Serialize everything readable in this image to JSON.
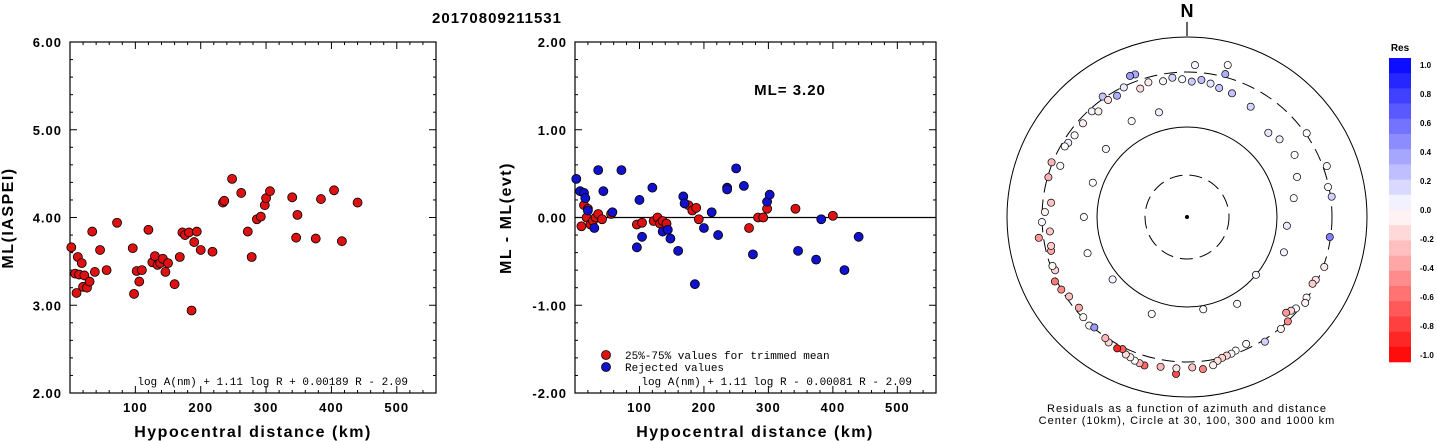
{
  "title": "20170809211531",
  "colors": {
    "red": "#dd1111",
    "blue": "#1111cc"
  },
  "chart_data": [
    {
      "type": "scatter",
      "xlabel": "Hypocentral distance (km)",
      "ylabel": "ML(IASPEI)",
      "xlim": [
        0,
        560
      ],
      "ylim": [
        2.0,
        6.0
      ],
      "xticks": [
        100,
        200,
        300,
        400,
        500
      ],
      "yticks": [
        "2.00",
        "3.00",
        "4.00",
        "5.00",
        "6.00"
      ],
      "annotation": "log A(nm) + 1.11 log R + 0.00189 R - 2.09",
      "points": [
        [
          2,
          3.66
        ],
        [
          8,
          3.36
        ],
        [
          10,
          3.14
        ],
        [
          12,
          3.55
        ],
        [
          14,
          3.35
        ],
        [
          18,
          3.48
        ],
        [
          20,
          3.21
        ],
        [
          22,
          3.34
        ],
        [
          26,
          3.2
        ],
        [
          30,
          3.27
        ],
        [
          34,
          3.84
        ],
        [
          38,
          3.38
        ],
        [
          46,
          3.63
        ],
        [
          56,
          3.4
        ],
        [
          72,
          3.94
        ],
        [
          96,
          3.65
        ],
        [
          98,
          3.13
        ],
        [
          102,
          3.39
        ],
        [
          106,
          3.27
        ],
        [
          110,
          3.4
        ],
        [
          120,
          3.86
        ],
        [
          126,
          3.49
        ],
        [
          130,
          3.56
        ],
        [
          134,
          3.46
        ],
        [
          138,
          3.48
        ],
        [
          142,
          3.53
        ],
        [
          146,
          3.38
        ],
        [
          150,
          3.48
        ],
        [
          160,
          3.24
        ],
        [
          168,
          3.55
        ],
        [
          172,
          3.83
        ],
        [
          176,
          3.8
        ],
        [
          182,
          3.83
        ],
        [
          186,
          2.94
        ],
        [
          190,
          3.72
        ],
        [
          194,
          3.84
        ],
        [
          200,
          3.63
        ],
        [
          218,
          3.61
        ],
        [
          234,
          4.17
        ],
        [
          236,
          4.19
        ],
        [
          248,
          4.44
        ],
        [
          262,
          4.28
        ],
        [
          272,
          3.84
        ],
        [
          278,
          3.55
        ],
        [
          286,
          3.98
        ],
        [
          292,
          4.01
        ],
        [
          298,
          4.14
        ],
        [
          300,
          4.22
        ],
        [
          306,
          4.3
        ],
        [
          340,
          4.23
        ],
        [
          346,
          3.77
        ],
        [
          348,
          4.03
        ],
        [
          376,
          3.76
        ],
        [
          384,
          4.21
        ],
        [
          404,
          4.31
        ],
        [
          416,
          3.73
        ],
        [
          440,
          4.17
        ]
      ]
    },
    {
      "type": "scatter",
      "xlabel": "Hypocentral distance (km)",
      "ylabel": "ML - ML(evt)",
      "xlim": [
        0,
        560
      ],
      "ylim": [
        -2.0,
        2.0
      ],
      "xticks": [
        100,
        200,
        300,
        400,
        500
      ],
      "yticks": [
        "-2.00",
        "-1.00",
        "0.00",
        "1.00",
        "2.00"
      ],
      "annotation": "ML= 3.20",
      "formula": "log A(nm) + 1.11 log R - 0.00081 R - 2.09",
      "legend": [
        "25%-75% values for trimmed mean",
        "Rejected values"
      ],
      "series": [
        {
          "name": "25%-75% values for trimmed mean",
          "color": "red",
          "points": [
            [
              10,
              -0.1
            ],
            [
              14,
              0.14
            ],
            [
              18,
              0.0
            ],
            [
              20,
              0.1
            ],
            [
              24,
              -0.08
            ],
            [
              28,
              -0.04
            ],
            [
              32,
              0.0
            ],
            [
              36,
              0.04
            ],
            [
              42,
              -0.02
            ],
            [
              56,
              0.04
            ],
            [
              96,
              -0.08
            ],
            [
              104,
              -0.06
            ],
            [
              122,
              -0.04
            ],
            [
              128,
              0.0
            ],
            [
              132,
              -0.07
            ],
            [
              136,
              -0.04
            ],
            [
              142,
              -0.07
            ],
            [
              176,
              0.14
            ],
            [
              182,
              0.08
            ],
            [
              188,
              0.11
            ],
            [
              192,
              -0.02
            ],
            [
              270,
              -0.12
            ],
            [
              284,
              0.0
            ],
            [
              292,
              0.0
            ],
            [
              298,
              0.1
            ],
            [
              342,
              0.1
            ],
            [
              400,
              0.02
            ]
          ]
        },
        {
          "name": "Rejected values",
          "color": "blue",
          "points": [
            [
              2,
              0.44
            ],
            [
              8,
              0.3
            ],
            [
              14,
              0.28
            ],
            [
              16,
              0.22
            ],
            [
              20,
              0.08
            ],
            [
              30,
              -0.12
            ],
            [
              36,
              0.54
            ],
            [
              44,
              0.3
            ],
            [
              58,
              0.06
            ],
            [
              72,
              0.54
            ],
            [
              96,
              -0.34
            ],
            [
              100,
              0.2
            ],
            [
              104,
              -0.22
            ],
            [
              120,
              0.34
            ],
            [
              136,
              -0.16
            ],
            [
              144,
              -0.14
            ],
            [
              148,
              -0.24
            ],
            [
              160,
              -0.38
            ],
            [
              168,
              0.24
            ],
            [
              170,
              0.16
            ],
            [
              186,
              -0.76
            ],
            [
              200,
              -0.12
            ],
            [
              212,
              0.06
            ],
            [
              222,
              -0.2
            ],
            [
              236,
              0.34
            ],
            [
              236,
              0.32
            ],
            [
              250,
              0.56
            ],
            [
              262,
              0.36
            ],
            [
              276,
              -0.42
            ],
            [
              298,
              0.18
            ],
            [
              302,
              0.26
            ],
            [
              346,
              -0.38
            ],
            [
              374,
              -0.48
            ],
            [
              382,
              -0.02
            ],
            [
              418,
              -0.6
            ],
            [
              440,
              -0.22
            ]
          ]
        }
      ]
    },
    {
      "type": "polar-scatter",
      "north_label": "N",
      "caption_line1": "Residuals as a function of azimuth and distance",
      "caption_line2": "Center (10km), Circle at 30, 100, 300 and 1000 km",
      "colorbar_title": "Res",
      "colorbar_ticks": [
        "1.0",
        "0.8",
        "0.6",
        "0.4",
        "0.2",
        "0.0",
        "-0.2",
        "-0.4",
        "-0.6",
        "-0.8",
        "-1.0"
      ],
      "center_km": 10,
      "circles_km": [
        30,
        100,
        300,
        1000
      ],
      "points": [
        [
          15,
          560,
          -0.02
        ],
        [
          3,
          490,
          0.04
        ],
        [
          -20,
          485,
          0.32
        ],
        [
          -22,
          490,
          0.4
        ],
        [
          15,
          440,
          0.32
        ],
        [
          -35,
          430,
          0.24
        ],
        [
          -58,
          360,
          0.06
        ],
        [
          -68,
          330,
          -0.02
        ],
        [
          55,
          420,
          0.0
        ],
        [
          70,
          450,
          -0.04
        ],
        [
          78,
          400,
          -0.02
        ],
        [
          82,
          420,
          0.18
        ],
        [
          98,
          400,
          0.5
        ],
        [
          110,
          420,
          -0.08
        ],
        [
          116,
          390,
          -0.1
        ],
        [
          118,
          380,
          -0.2
        ],
        [
          124,
          400,
          -0.02
        ],
        [
          126,
          420,
          -0.06
        ],
        [
          130,
          380,
          0.02
        ],
        [
          132,
          360,
          -0.18
        ],
        [
          134,
          340,
          -0.4
        ],
        [
          136,
          410,
          -0.46
        ],
        [
          140,
          420,
          -0.04
        ],
        [
          148,
          430,
          0.18
        ],
        [
          155,
          360,
          0.0
        ],
        [
          160,
          380,
          0.02
        ],
        [
          162,
          395,
          0.04
        ],
        [
          164,
          400,
          -0.16
        ],
        [
          166,
          410,
          -0.18
        ],
        [
          168,
          430,
          -0.12
        ],
        [
          170,
          470,
          -0.06
        ],
        [
          174,
          500,
          -0.5
        ],
        [
          178,
          470,
          -0.22
        ],
        [
          184,
          560,
          -0.7
        ],
        [
          184,
          485,
          -0.1
        ],
        [
          190,
          490,
          -0.28
        ],
        [
          196,
          520,
          -0.6
        ],
        [
          198,
          510,
          -0.28
        ],
        [
          200,
          500,
          0.02
        ],
        [
          202,
          480,
          -0.06
        ],
        [
          204,
          470,
          -0.14
        ],
        [
          206,
          430,
          -0.64
        ],
        [
          208,
          450,
          -0.86
        ],
        [
          212,
          440,
          -0.16
        ],
        [
          214,
          420,
          -0.28
        ],
        [
          222,
          420,
          -0.04
        ],
        [
          220,
          400,
          0.4
        ],
        [
          226,
          400,
          -0.02
        ],
        [
          230,
          370,
          -0.34
        ],
        [
          236,
          380,
          -0.24
        ],
        [
          240,
          410,
          -0.46
        ],
        [
          244,
          430,
          -0.52
        ],
        [
          248,
          380,
          -0.16
        ],
        [
          250,
          390,
          -0.02
        ],
        [
          256,
          360,
          -0.34
        ],
        [
          258,
          350,
          -0.2
        ],
        [
          262,
          460,
          -0.4
        ],
        [
          268,
          410,
          0.02
        ],
        [
          272,
          380,
          -0.06
        ],
        [
          264,
          340,
          -0.22
        ],
        [
          276,
          330,
          -0.24
        ],
        [
          286,
          400,
          -0.3
        ],
        [
          292,
          420,
          -0.28
        ],
        [
          300,
          370,
          0.0
        ],
        [
          306,
          350,
          0.02
        ],
        [
          312,
          360,
          -0.08
        ],
        [
          318,
          380,
          0.04
        ],
        [
          320,
          340,
          -0.06
        ],
        [
          326,
          370,
          -0.12
        ],
        [
          330,
          360,
          0.32
        ],
        [
          334,
          400,
          0.08
        ],
        [
          340,
          330,
          -0.14
        ],
        [
          344,
          360,
          -0.08
        ],
        [
          350,
          340,
          -0.04
        ],
        [
          354,
          360,
          0.16
        ],
        [
          358,
          340,
          0.02
        ],
        [
          2,
          320,
          0.2
        ],
        [
          6,
          340,
          0.26
        ],
        [
          10,
          320,
          0.1
        ],
        [
          14,
          300,
          0.22
        ],
        [
          20,
          290,
          0.24
        ],
        [
          30,
          260,
          0.16
        ],
        [
          44,
          200,
          0.1
        ],
        [
          50,
          220,
          0.06
        ],
        [
          60,
          240,
          0.0
        ],
        [
          70,
          200,
          0.02
        ],
        [
          80,
          160,
          0.02
        ],
        [
          95,
          130,
          0.08
        ],
        [
          110,
          140,
          0.06
        ],
        [
          130,
          100,
          0.04
        ],
        [
          150,
          130,
          0.02
        ],
        [
          170,
          110,
          0.0
        ],
        [
          200,
          140,
          0.02
        ],
        [
          230,
          120,
          0.04
        ],
        [
          250,
          150,
          0.0
        ],
        [
          270,
          140,
          0.02
        ],
        [
          290,
          130,
          0.0
        ],
        [
          310,
          150,
          0.04
        ],
        [
          330,
          170,
          0.02
        ],
        [
          345,
          160,
          0.06
        ]
      ]
    }
  ]
}
